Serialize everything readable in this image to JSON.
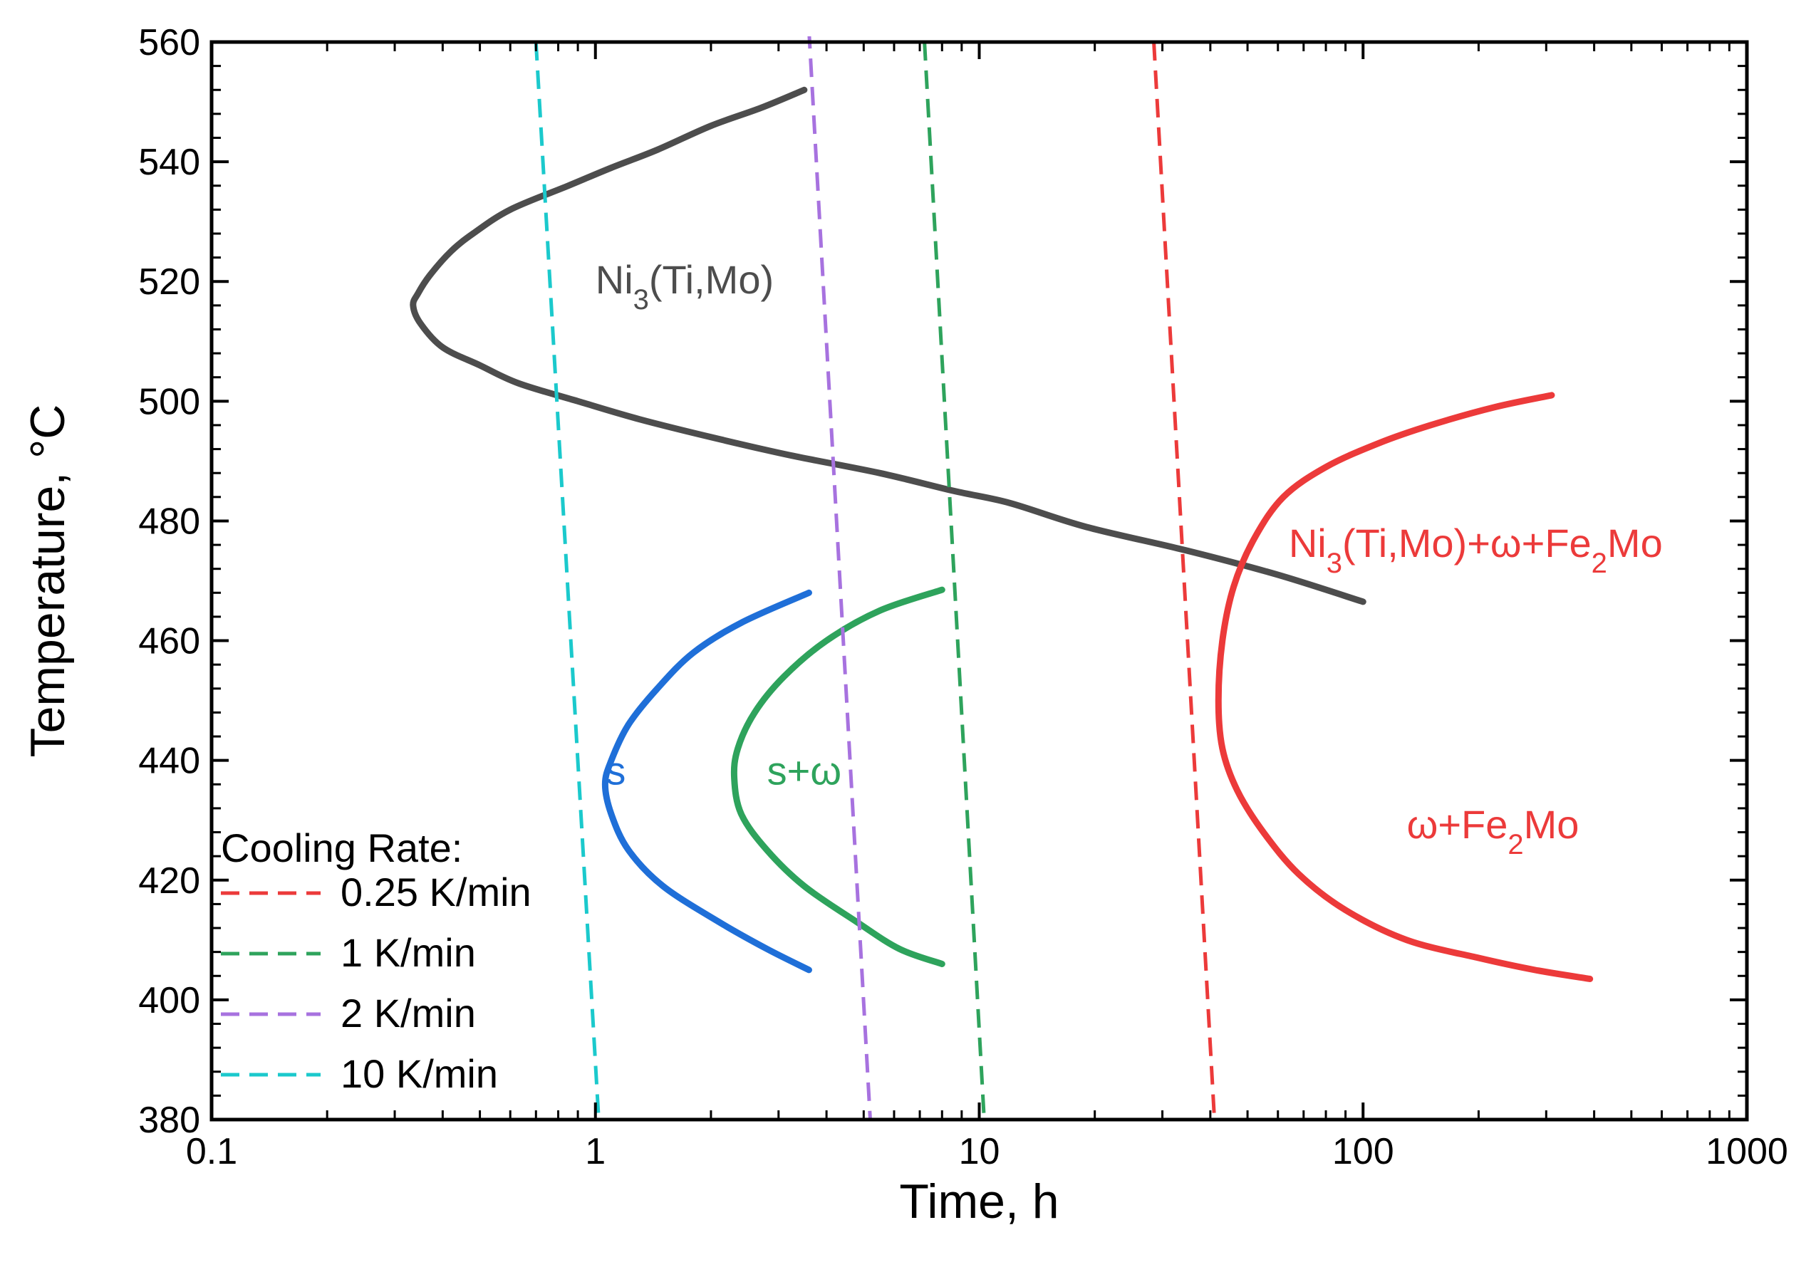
{
  "chart_data": {
    "type": "line",
    "title": "",
    "xlabel": "Time, h",
    "ylabel": "Temperature, °C",
    "xscale": "log",
    "xlim": [
      0.1,
      1000
    ],
    "ylim": [
      380,
      560
    ],
    "xticks": [
      0.1,
      1,
      10,
      100,
      1000
    ],
    "xtick_labels": [
      "0.1",
      "1",
      "10",
      "100",
      "1000"
    ],
    "yticks": [
      380,
      400,
      420,
      440,
      460,
      480,
      500,
      520,
      540,
      560
    ],
    "ytick_labels": [
      "380",
      "400",
      "420",
      "440",
      "460",
      "480",
      "500",
      "520",
      "540",
      "560"
    ],
    "grid": false,
    "colors": {
      "ni3": "#4d4d4d",
      "s": "#1f6fd8",
      "s_omega": "#2ea35c",
      "omega_fe2mo": "#ec3a3a",
      "rate_025": "#ec3a3a",
      "rate_1": "#2ea35c",
      "rate_2": "#a772df",
      "rate_10": "#1bc9cc"
    },
    "series": [
      {
        "name": "Ni3(Ti,Mo)",
        "color_key": "ni3",
        "style": "solid",
        "points": [
          [
            3.5,
            552
          ],
          [
            2.7,
            549
          ],
          [
            2.0,
            546
          ],
          [
            1.45,
            542
          ],
          [
            1.1,
            539
          ],
          [
            0.85,
            536
          ],
          [
            0.6,
            532
          ],
          [
            0.48,
            528
          ],
          [
            0.42,
            525
          ],
          [
            0.37,
            521
          ],
          [
            0.345,
            518
          ],
          [
            0.335,
            516
          ],
          [
            0.35,
            513
          ],
          [
            0.4,
            509
          ],
          [
            0.5,
            506
          ],
          [
            0.63,
            503
          ],
          [
            0.9,
            500
          ],
          [
            1.3,
            497
          ],
          [
            2.0,
            494
          ],
          [
            3.2,
            491
          ],
          [
            5.5,
            488
          ],
          [
            8.6,
            485
          ],
          [
            12,
            483
          ],
          [
            19,
            479
          ],
          [
            35,
            475
          ],
          [
            60,
            471
          ],
          [
            100,
            466.5
          ]
        ]
      },
      {
        "name": "s",
        "color_key": "s",
        "style": "solid",
        "points": [
          [
            3.6,
            468
          ],
          [
            2.4,
            463
          ],
          [
            1.8,
            458
          ],
          [
            1.45,
            452
          ],
          [
            1.22,
            446
          ],
          [
            1.1,
            440
          ],
          [
            1.06,
            436
          ],
          [
            1.1,
            431
          ],
          [
            1.22,
            425
          ],
          [
            1.5,
            419
          ],
          [
            2.1,
            413
          ],
          [
            2.8,
            408.5
          ],
          [
            3.6,
            405
          ]
        ]
      },
      {
        "name": "s+ω",
        "color_key": "s_omega",
        "style": "solid",
        "points": [
          [
            8.0,
            468.5
          ],
          [
            5.5,
            465
          ],
          [
            4.0,
            460
          ],
          [
            3.1,
            454
          ],
          [
            2.6,
            448
          ],
          [
            2.35,
            442
          ],
          [
            2.3,
            437
          ],
          [
            2.4,
            431
          ],
          [
            2.8,
            425
          ],
          [
            3.5,
            419
          ],
          [
            4.8,
            413
          ],
          [
            6.2,
            408.5
          ],
          [
            8.0,
            406
          ]
        ]
      },
      {
        "name": "Ni3(Ti,Mo)+ω+Fe2Mo / ω+Fe2Mo",
        "color_key": "omega_fe2mo",
        "style": "solid",
        "points": [
          [
            310,
            501
          ],
          [
            220,
            499
          ],
          [
            150,
            496
          ],
          [
            110,
            493
          ],
          [
            80,
            489
          ],
          [
            62,
            484
          ],
          [
            52,
            477
          ],
          [
            46,
            469
          ],
          [
            43,
            460
          ],
          [
            42,
            450
          ],
          [
            43,
            442
          ],
          [
            47,
            435
          ],
          [
            55,
            428
          ],
          [
            68,
            421
          ],
          [
            90,
            415
          ],
          [
            130,
            410
          ],
          [
            200,
            407
          ],
          [
            280,
            405
          ],
          [
            390,
            403.5
          ]
        ]
      },
      {
        "name": "0.25 K/min",
        "color_key": "rate_025",
        "style": "dashed",
        "points": [
          [
            28.5,
            560
          ],
          [
            41,
            380
          ]
        ]
      },
      {
        "name": "1 K/min",
        "color_key": "rate_1",
        "style": "dashed",
        "points": [
          [
            7.2,
            560
          ],
          [
            10.3,
            380
          ]
        ]
      },
      {
        "name": "2 K/min",
        "color_key": "rate_2",
        "style": "dashed",
        "points": [
          [
            3.6,
            562
          ],
          [
            5.2,
            380
          ]
        ]
      },
      {
        "name": "10 K/min",
        "color_key": "rate_10",
        "style": "dashed",
        "points": [
          [
            0.7,
            560
          ],
          [
            1.02,
            380
          ]
        ]
      }
    ],
    "annotations": [
      {
        "key": "ni3",
        "html_parts": [
          [
            "Ni",
            ""
          ],
          [
            "3",
            "sub"
          ],
          [
            "(Ti,Mo)",
            ""
          ]
        ],
        "x": 1.0,
        "y": 518,
        "color_key": "ni3"
      },
      {
        "key": "s",
        "html_parts": [
          [
            "s",
            ""
          ]
        ],
        "x": 1.13,
        "y": 436,
        "color_key": "s",
        "anchor": "middle"
      },
      {
        "key": "s_omega",
        "html_parts": [
          [
            "s+ω",
            ""
          ]
        ],
        "x": 3.5,
        "y": 436,
        "color_key": "s_omega",
        "anchor": "middle"
      },
      {
        "key": "mix",
        "html_parts": [
          [
            "Ni",
            ""
          ],
          [
            "3",
            "sub"
          ],
          [
            "(Ti,Mo)+ω+Fe",
            ""
          ],
          [
            "2",
            "sub"
          ],
          [
            "Mo",
            ""
          ]
        ],
        "x": 64,
        "y": 474,
        "color_key": "omega_fe2mo"
      },
      {
        "key": "omega_fe2mo",
        "html_parts": [
          [
            "ω+Fe",
            ""
          ],
          [
            "2",
            "sub"
          ],
          [
            "Mo",
            ""
          ]
        ],
        "x": 130,
        "y": 427,
        "color_key": "omega_fe2mo"
      }
    ],
    "legend": {
      "title": "Cooling Rate:",
      "placement": "bottom-left",
      "entries": [
        "0.25 K/min",
        "1 K/min",
        "2 K/min",
        "10 K/min"
      ],
      "entry_color_keys": [
        "rate_025",
        "rate_1",
        "rate_2",
        "rate_10"
      ]
    }
  }
}
